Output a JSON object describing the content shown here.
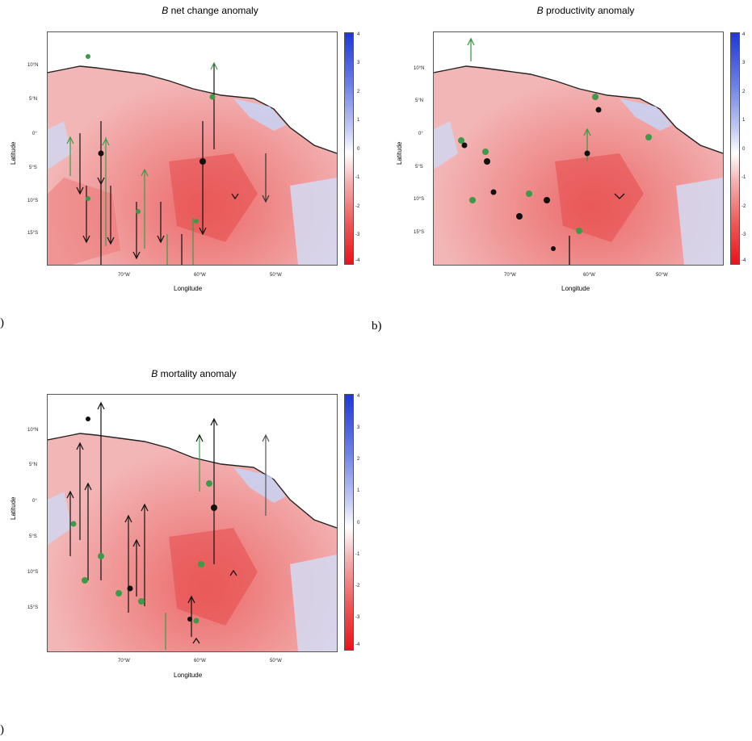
{
  "panels": [
    {
      "id": "a",
      "title_symbol": "B",
      "title_rest": " net change anomaly",
      "label": ")",
      "ylabel": "Latitude",
      "xlabel": "Longitude",
      "lat_ticks": [
        "10°N",
        "5°N",
        "0°",
        "5°S",
        "10°S",
        "15°S"
      ],
      "lon_ticks": [
        "70°W",
        "60°W",
        "50°W"
      ],
      "colorbar_ticks": [
        "4",
        "3",
        "2",
        "1",
        "0",
        "-1",
        "-2",
        "-3",
        "-4"
      ]
    },
    {
      "id": "b",
      "title_symbol": "B",
      "title_rest": " productivity anomaly",
      "label": "b)",
      "ylabel": "Latitude",
      "xlabel": "Longitude",
      "lat_ticks": [
        "10°N",
        "5°N",
        "0°",
        "5°S",
        "10°S",
        "15°S"
      ],
      "lon_ticks": [
        "70°W",
        "60°W",
        "50°W"
      ],
      "colorbar_ticks": [
        "4",
        "3",
        "2",
        "1",
        "0",
        "-1",
        "-2",
        "-3",
        "-4"
      ]
    },
    {
      "id": "c",
      "title_symbol": "B",
      "title_rest": " mortality anomaly",
      "label": ")",
      "ylabel": "Latitude",
      "xlabel": "Longitude",
      "lat_ticks": [
        "10°N",
        "5°N",
        "0°",
        "5°S",
        "10°S",
        "15°S"
      ],
      "lon_ticks": [
        "70°W",
        "60°W",
        "50°W"
      ],
      "colorbar_ticks": [
        "4",
        "3",
        "2",
        "1",
        "0",
        "-1",
        "-2",
        "-3",
        "-4"
      ]
    }
  ],
  "colors": {
    "negative": "#e8141a",
    "positive": "#1f37d6",
    "arrow_dark": "#111111",
    "arrow_green": "#3e9a48"
  }
}
